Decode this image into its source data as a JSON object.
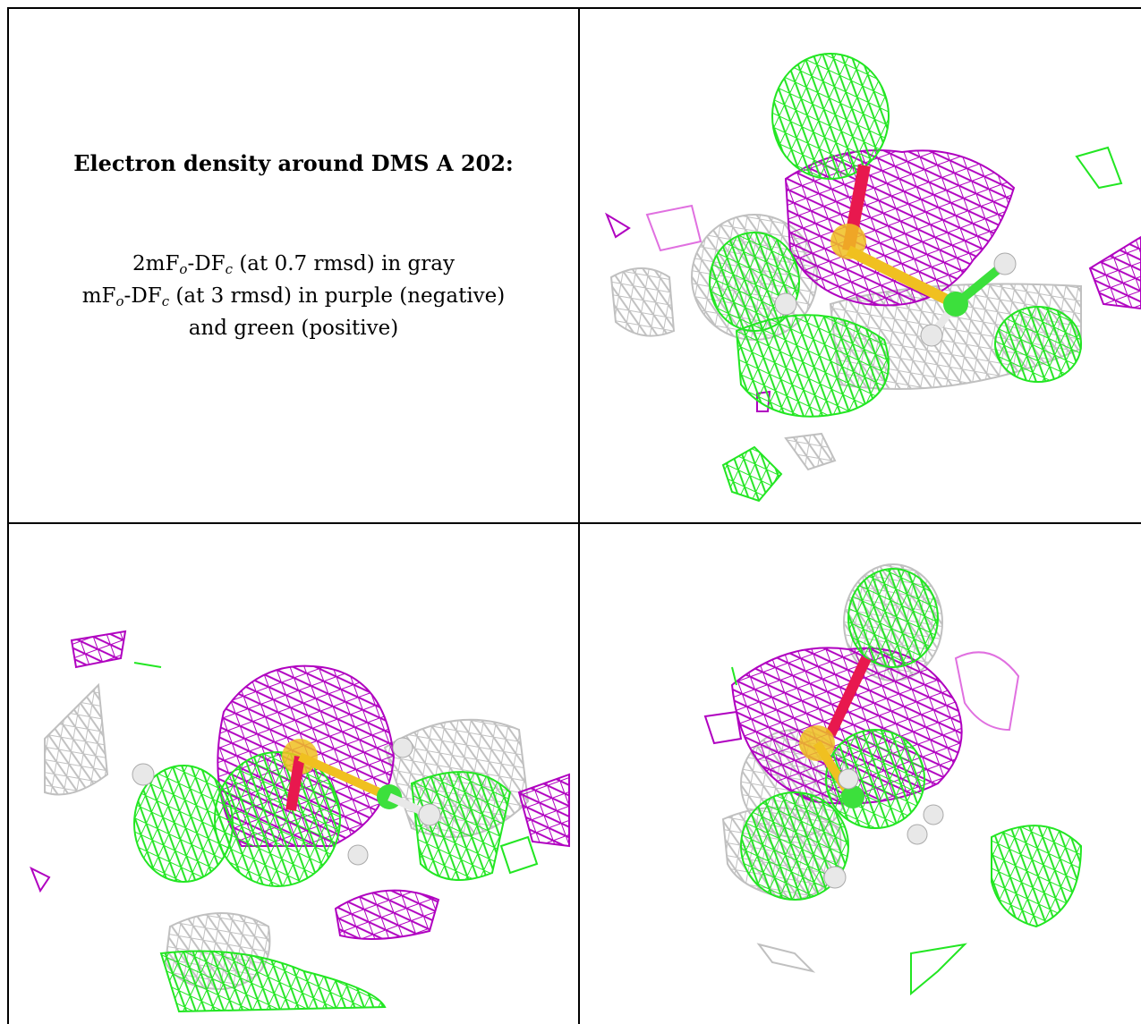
{
  "caption": {
    "title": "Electron density around DMS A 202:",
    "gray_map": {
      "pre": "2mF",
      "sub1": "o",
      "mid": "-DF",
      "sub2": "c",
      "post": " (at 0.7 rmsd) in gray"
    },
    "diff_map": {
      "pre": "mF",
      "sub1": "o",
      "mid": "-DF",
      "sub2": "c",
      "post": " (at 3 rmsd) in purple (negative)"
    },
    "positive": "and green (positive)"
  },
  "colors": {
    "gray_mesh": "#c0c0c0",
    "negative_mesh": "#b000c0",
    "positive_mesh": "#22e622",
    "sulfur": "#f0c020",
    "oxygen": "#e8184e",
    "carbon": "#3ce03c",
    "hydrogen": "#e8e8e8"
  },
  "panels": [
    {
      "view": "top-right"
    },
    {
      "view": "bottom-left"
    },
    {
      "view": "bottom-right"
    }
  ]
}
